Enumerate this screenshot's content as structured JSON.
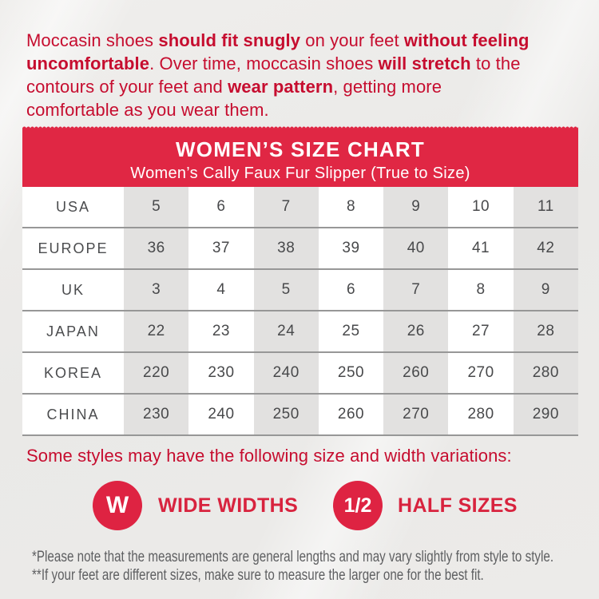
{
  "colors": {
    "accent_text_red": "#C60D2F",
    "banner_red": "#E02744",
    "badge_red": "#DE2342",
    "table_shade_gray": "#E2E1E0",
    "footnote_gray": "#5E5F61"
  },
  "intro": {
    "lines": [
      {
        "segments": [
          {
            "t": "Moccasin shoes "
          },
          {
            "t": "should fit snugly"
          },
          {
            "t": " on your feet "
          },
          {
            "t": "without feeling"
          }
        ]
      },
      {
        "segments": [
          {
            "t": "uncomfortable"
          },
          {
            "t": ". Over time, moccasin shoes "
          },
          {
            "t": "will stretch"
          },
          {
            "t": " to the"
          }
        ]
      },
      {
        "segments": [
          {
            "t": "contours of your feet and "
          },
          {
            "t": "wear pattern"
          },
          {
            "t": ", getting more"
          }
        ]
      },
      {
        "segments": [
          {
            "t": "comfortable as you wear them."
          }
        ]
      }
    ]
  },
  "banner": {
    "title": "WOMEN’S SIZE CHART",
    "subtitle": "Women’s Cally Faux Fur Slipper (True to Size)"
  },
  "size_chart": {
    "rows": [
      {
        "label": "USA",
        "values": [
          "5",
          "6",
          "7",
          "8",
          "9",
          "10",
          "11"
        ]
      },
      {
        "label": "EUROPE",
        "values": [
          "36",
          "37",
          "38",
          "39",
          "40",
          "41",
          "42"
        ]
      },
      {
        "label": "UK",
        "values": [
          "3",
          "4",
          "5",
          "6",
          "7",
          "8",
          "9"
        ]
      },
      {
        "label": "JAPAN",
        "values": [
          "22",
          "23",
          "24",
          "25",
          "26",
          "27",
          "28"
        ]
      },
      {
        "label": "KOREA",
        "values": [
          "220",
          "230",
          "240",
          "250",
          "260",
          "270",
          "280"
        ]
      },
      {
        "label": "CHINA",
        "values": [
          "230",
          "240",
          "250",
          "260",
          "270",
          "280",
          "290"
        ]
      }
    ]
  },
  "variations": {
    "heading": "Some styles may have the following size and width variations:",
    "badges": [
      {
        "symbol": "W",
        "label": "WIDE WIDTHS"
      },
      {
        "symbol": "1/2",
        "label": "HALF SIZES"
      }
    ]
  },
  "footnotes": {
    "line1": "*Please note that the measurements are general lengths and may vary slightly from style to style.",
    "line2": "**If your feet are different sizes, make sure to measure the larger one for the best fit."
  }
}
